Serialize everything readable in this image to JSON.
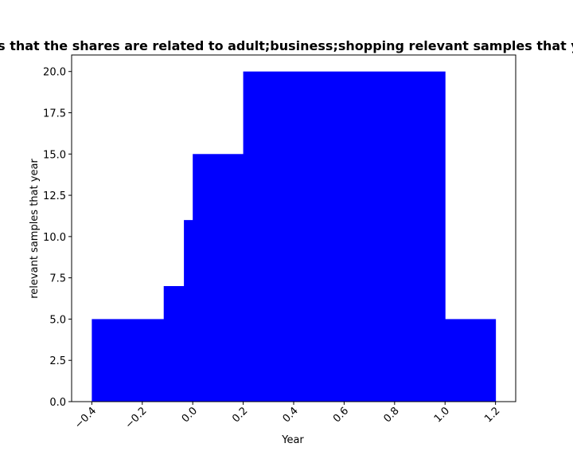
{
  "chart_data": {
    "type": "bar",
    "title": "Number of websites that the shares are related to adult;business;shopping relevant samples that year in privacy policy",
    "xlabel": "Year",
    "ylabel": "relevant samples that year",
    "xlim": [
      -0.48,
      1.28
    ],
    "ylim": [
      0,
      21
    ],
    "x_ticks": [
      -0.4,
      -0.2,
      0.0,
      0.2,
      0.4,
      0.6,
      0.8,
      1.0,
      1.2
    ],
    "x_tick_labels": [
      "−0.4",
      "−0.2",
      "0.0",
      "0.2",
      "0.4",
      "0.6",
      "0.8",
      "1.0",
      "1.2"
    ],
    "y_ticks": [
      0,
      2.5,
      5,
      7.5,
      10,
      12.5,
      15,
      17.5,
      20
    ],
    "y_tick_labels": [
      "0.0",
      "2.5",
      "5.0",
      "7.5",
      "10.0",
      "12.5",
      "15.0",
      "17.5",
      "20.0"
    ],
    "bar_color": "#0000ff",
    "bars": [
      {
        "x0": -0.4,
        "x1": -0.115,
        "value": 5
      },
      {
        "x0": -0.115,
        "x1": -0.035,
        "value": 7
      },
      {
        "x0": -0.035,
        "x1": 0.0,
        "value": 11
      },
      {
        "x0": 0.0,
        "x1": 0.2,
        "value": 15
      },
      {
        "x0": 0.2,
        "x1": 1.0,
        "value": 20
      },
      {
        "x0": 1.0,
        "x1": 1.2,
        "value": 5
      }
    ]
  }
}
